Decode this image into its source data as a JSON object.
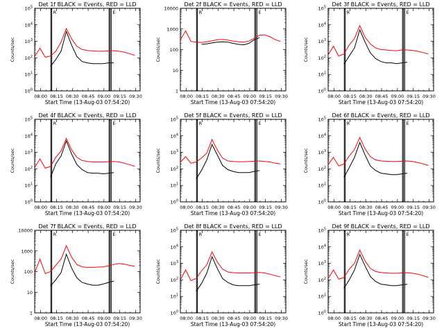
{
  "figure": {
    "xlabel": "Start Time (13-Aug-03 07:54:20)",
    "ylabel": "Counts/sec",
    "x_ticks": [
      "08:00",
      "08:15",
      "08:30",
      "08:45",
      "09:00",
      "09:15",
      "09:30"
    ],
    "markers": [
      "R",
      "E"
    ],
    "legend_text": "BLACK = Events, RED = LLD"
  },
  "chart_data": [
    {
      "type": "line",
      "title": "Det 1f  BLACK = Events, RED = LLD",
      "ylabel": "Counts/sec",
      "xlabel": "Start Time (13-Aug-03 07:54:20)",
      "yscale": "log",
      "ylim": [
        1,
        100000
      ],
      "y_ticks": [
        "10^0",
        "10^1",
        "10^2",
        "10^3",
        "10^4",
        "10^5"
      ],
      "style": "exp",
      "x_minutes": [
        0,
        5,
        10,
        15,
        20,
        25,
        30,
        35,
        40,
        45,
        50,
        55,
        60,
        65,
        70,
        75,
        80,
        85,
        90,
        95
      ],
      "series": [
        {
          "name": "Events",
          "color": "#000000",
          "values": [
            null,
            null,
            null,
            30,
            80,
            250,
            4000,
            600,
            120,
            60,
            50,
            45,
            45,
            45,
            50,
            50,
            null,
            null,
            null,
            null
          ]
        },
        {
          "name": "LLD",
          "color": "#ff0000",
          "values": [
            120,
            380,
            110,
            130,
            250,
            900,
            6000,
            1400,
            500,
            320,
            280,
            260,
            250,
            250,
            260,
            270,
            250,
            220,
            180,
            140
          ]
        }
      ]
    },
    {
      "type": "line",
      "title": "Det 2f  BLACK = Events, RED = LLD",
      "ylabel": "Counts/sec",
      "xlabel": "Start Time (13-Aug-03 07:54:20)",
      "yscale": "log",
      "ylim": [
        1,
        10000
      ],
      "y_ticks": [
        "1",
        "10",
        "100",
        "1000",
        "10000"
      ],
      "style": "plain",
      "x_minutes": [
        0,
        5,
        10,
        15,
        20,
        25,
        30,
        35,
        40,
        45,
        50,
        55,
        60,
        65,
        70,
        75,
        80,
        85,
        90,
        95
      ],
      "series": [
        {
          "name": "Events",
          "color": "#000000",
          "values": [
            null,
            null,
            null,
            null,
            180,
            190,
            210,
            230,
            240,
            230,
            200,
            180,
            170,
            200,
            300,
            380,
            null,
            null,
            null,
            null
          ]
        },
        {
          "name": "LLD",
          "color": "#ff0000",
          "values": [
            300,
            800,
            250,
            230,
            220,
            240,
            270,
            300,
            310,
            290,
            260,
            240,
            230,
            260,
            350,
            500,
            520,
            420,
            300,
            250
          ]
        }
      ]
    },
    {
      "type": "line",
      "title": "Det 3f  BLACK = Events, RED = LLD",
      "ylabel": "Counts/sec",
      "xlabel": "Start Time (13-Aug-03 07:54:20)",
      "yscale": "log",
      "ylim": [
        1,
        100000
      ],
      "y_ticks": [
        "10^0",
        "10^1",
        "10^2",
        "10^3",
        "10^4",
        "10^5"
      ],
      "style": "exp",
      "x_minutes": [
        0,
        5,
        10,
        15,
        20,
        25,
        30,
        35,
        40,
        45,
        50,
        55,
        60,
        65,
        70,
        75,
        80,
        85,
        90,
        95
      ],
      "series": [
        {
          "name": "Events",
          "color": "#000000",
          "values": [
            null,
            null,
            null,
            40,
            130,
            400,
            5000,
            900,
            200,
            90,
            60,
            50,
            50,
            45,
            50,
            55,
            null,
            null,
            null,
            null
          ]
        },
        {
          "name": "LLD",
          "color": "#ff0000",
          "values": [
            150,
            500,
            130,
            170,
            600,
            1500,
            9000,
            1800,
            700,
            400,
            320,
            300,
            280,
            270,
            300,
            300,
            280,
            250,
            210,
            170
          ]
        }
      ]
    },
    {
      "type": "line",
      "title": "Det 4f  BLACK = Events, RED = LLD",
      "ylabel": "Counts/sec",
      "xlabel": "Start Time (13-Aug-03 07:54:20)",
      "yscale": "log",
      "ylim": [
        1,
        100000
      ],
      "y_ticks": [
        "10^0",
        "10^1",
        "10^2",
        "10^3",
        "10^4",
        "10^5"
      ],
      "style": "exp",
      "x_minutes": [
        0,
        5,
        10,
        15,
        20,
        25,
        30,
        35,
        40,
        45,
        50,
        55,
        60,
        65,
        70,
        75,
        80,
        85,
        90,
        95
      ],
      "series": [
        {
          "name": "Events",
          "color": "#000000",
          "values": [
            null,
            null,
            null,
            30,
            200,
            600,
            5000,
            800,
            180,
            90,
            60,
            55,
            55,
            50,
            55,
            60,
            null,
            null,
            null,
            null
          ]
        },
        {
          "name": "LLD",
          "color": "#ff0000",
          "values": [
            120,
            400,
            110,
            140,
            500,
            1200,
            7000,
            1400,
            500,
            320,
            280,
            260,
            260,
            260,
            270,
            280,
            260,
            220,
            180,
            140
          ]
        }
      ]
    },
    {
      "type": "line",
      "title": "Det 5f  BLACK = Events, RED = LLD",
      "ylabel": "Counts/sec",
      "xlabel": "Start Time (13-Aug-03 07:54:20)",
      "yscale": "log",
      "ylim": [
        1,
        100000
      ],
      "y_ticks": [
        "10^0",
        "10^1",
        "10^2",
        "10^3",
        "10^4",
        "10^5"
      ],
      "style": "exp",
      "x_minutes": [
        0,
        5,
        10,
        15,
        20,
        25,
        30,
        35,
        40,
        45,
        50,
        55,
        60,
        65,
        70,
        75,
        80,
        85,
        90,
        95
      ],
      "series": [
        {
          "name": "Events",
          "color": "#000000",
          "values": [
            null,
            null,
            null,
            25,
            80,
            350,
            3000,
            700,
            160,
            90,
            70,
            60,
            60,
            60,
            70,
            80,
            null,
            null,
            null,
            null
          ]
        },
        {
          "name": "LLD",
          "color": "#ff0000",
          "values": [
            250,
            550,
            220,
            260,
            450,
            900,
            6000,
            1400,
            450,
            300,
            280,
            270,
            270,
            280,
            290,
            300,
            280,
            260,
            220,
            200
          ]
        }
      ]
    },
    {
      "type": "line",
      "title": "Det 6f  BLACK = Events, RED = LLD",
      "ylabel": "Counts/sec",
      "xlabel": "Start Time (13-Aug-03 07:54:20)",
      "yscale": "log",
      "ylim": [
        1,
        100000
      ],
      "y_ticks": [
        "10^0",
        "10^1",
        "10^2",
        "10^3",
        "10^4",
        "10^5"
      ],
      "style": "exp",
      "x_minutes": [
        0,
        5,
        10,
        15,
        20,
        25,
        30,
        35,
        40,
        45,
        50,
        55,
        60,
        65,
        70,
        75,
        80,
        85,
        90,
        95
      ],
      "series": [
        {
          "name": "Events",
          "color": "#000000",
          "values": [
            null,
            null,
            null,
            30,
            120,
            500,
            4000,
            700,
            150,
            80,
            55,
            50,
            45,
            45,
            50,
            55,
            null,
            null,
            null,
            null
          ]
        },
        {
          "name": "LLD",
          "color": "#ff0000",
          "values": [
            180,
            500,
            150,
            200,
            600,
            1500,
            8000,
            1600,
            550,
            350,
            300,
            290,
            280,
            280,
            290,
            300,
            280,
            240,
            200,
            160
          ]
        }
      ]
    },
    {
      "type": "line",
      "title": "Det 7f  BLACK = Events, RED = LLD",
      "ylabel": "Counts/sec",
      "xlabel": "Start Time (13-Aug-03 07:54:20)",
      "yscale": "log",
      "ylim": [
        1,
        10000
      ],
      "y_ticks": [
        "1",
        "10",
        "100",
        "1000",
        "10000"
      ],
      "style": "plain",
      "x_minutes": [
        0,
        5,
        10,
        15,
        20,
        25,
        30,
        35,
        40,
        45,
        50,
        55,
        60,
        65,
        70,
        75,
        80,
        85,
        90,
        95
      ],
      "series": [
        {
          "name": "Events",
          "color": "#000000",
          "values": [
            null,
            null,
            null,
            20,
            40,
            90,
            700,
            150,
            50,
            30,
            25,
            22,
            22,
            25,
            30,
            35,
            null,
            null,
            null,
            null
          ]
        },
        {
          "name": "LLD",
          "color": "#ff0000",
          "values": [
            90,
            400,
            80,
            100,
            200,
            400,
            1800,
            500,
            220,
            170,
            160,
            160,
            165,
            170,
            190,
            220,
            250,
            230,
            200,
            180
          ]
        }
      ]
    },
    {
      "type": "line",
      "title": "Det 8f  BLACK = Events, RED = LLD",
      "ylabel": "Counts/sec",
      "xlabel": "Start Time (13-Aug-03 07:54:20)",
      "yscale": "log",
      "ylim": [
        1,
        100000
      ],
      "y_ticks": [
        "10^0",
        "10^1",
        "10^2",
        "10^3",
        "10^4",
        "10^5"
      ],
      "style": "exp",
      "x_minutes": [
        0,
        5,
        10,
        15,
        20,
        25,
        30,
        35,
        40,
        45,
        50,
        55,
        60,
        65,
        70,
        75,
        80,
        85,
        90,
        95
      ],
      "series": [
        {
          "name": "Events",
          "color": "#000000",
          "values": [
            null,
            null,
            null,
            20,
            60,
            250,
            2500,
            500,
            120,
            70,
            50,
            45,
            45,
            45,
            50,
            55,
            null,
            null,
            null,
            null
          ]
        },
        {
          "name": "LLD",
          "color": "#ff0000",
          "values": [
            100,
            400,
            90,
            120,
            350,
            800,
            5000,
            1200,
            450,
            300,
            270,
            260,
            260,
            260,
            270,
            280,
            260,
            220,
            180,
            150
          ]
        }
      ]
    },
    {
      "type": "line",
      "title": "Det 9f  BLACK = Events, RED = LLD",
      "ylabel": "Counts/sec",
      "xlabel": "Start Time (13-Aug-03 07:54:20)",
      "yscale": "log",
      "ylim": [
        1,
        100000
      ],
      "y_ticks": [
        "10^0",
        "10^1",
        "10^2",
        "10^3",
        "10^4",
        "10^5"
      ],
      "style": "exp",
      "x_minutes": [
        0,
        5,
        10,
        15,
        20,
        25,
        30,
        35,
        40,
        45,
        50,
        55,
        60,
        65,
        70,
        75,
        80,
        85,
        90,
        95
      ],
      "series": [
        {
          "name": "Events",
          "color": "#000000",
          "values": [
            null,
            null,
            null,
            30,
            100,
            400,
            3500,
            700,
            160,
            80,
            55,
            50,
            45,
            45,
            50,
            55,
            null,
            null,
            null,
            null
          ]
        },
        {
          "name": "LLD",
          "color": "#ff0000",
          "values": [
            120,
            400,
            110,
            140,
            450,
            1000,
            6500,
            1400,
            500,
            320,
            280,
            260,
            250,
            250,
            260,
            270,
            250,
            220,
            180,
            140
          ]
        }
      ]
    }
  ]
}
